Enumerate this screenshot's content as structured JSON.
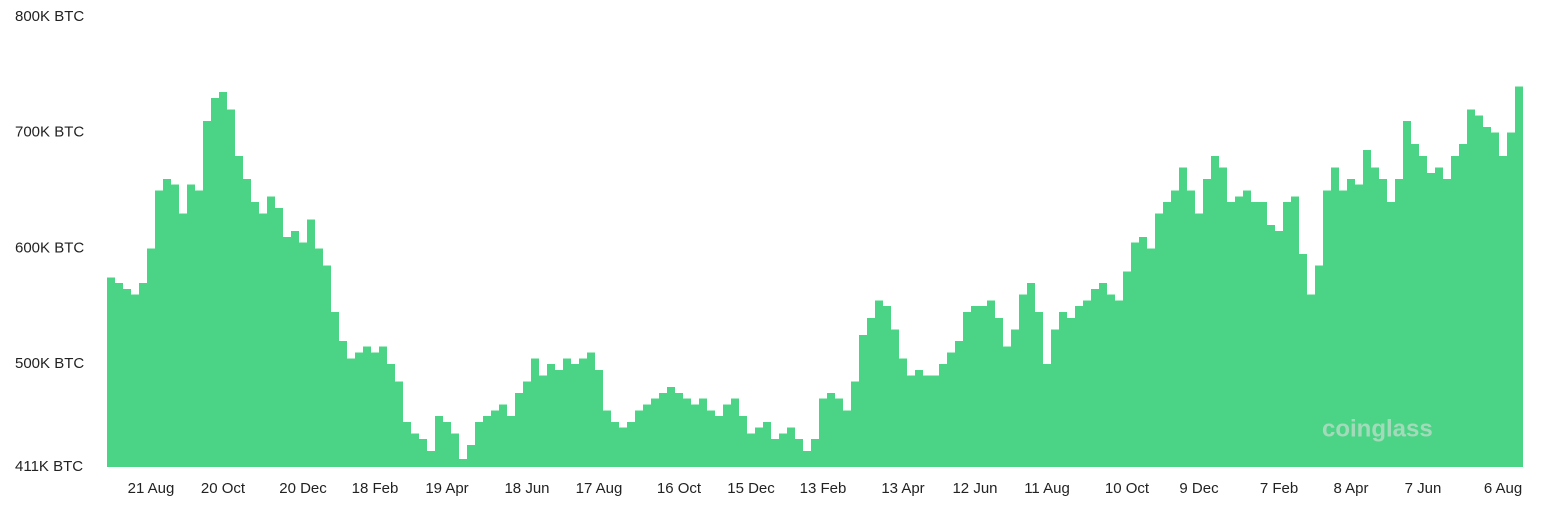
{
  "chart_data": {
    "type": "bar",
    "color": "#4cd486",
    "watermark": "coinglass",
    "ylim": [
      411000,
      800000
    ],
    "yticks": [
      {
        "value": 411000,
        "label": "411K BTC"
      },
      {
        "value": 500000,
        "label": "500K BTC"
      },
      {
        "value": 600000,
        "label": "600K BTC"
      },
      {
        "value": 700000,
        "label": "700K BTC"
      },
      {
        "value": 800000,
        "label": "800K BTC"
      }
    ],
    "categories": [
      null,
      null,
      null,
      null,
      null,
      "21 Aug",
      null,
      null,
      null,
      null,
      null,
      null,
      null,
      null,
      "20 Oct",
      null,
      null,
      null,
      null,
      null,
      null,
      null,
      null,
      null,
      "20 Dec",
      null,
      null,
      null,
      null,
      null,
      null,
      null,
      null,
      "18 Feb",
      null,
      null,
      null,
      null,
      null,
      null,
      null,
      null,
      "19 Apr",
      null,
      null,
      null,
      null,
      null,
      null,
      null,
      null,
      null,
      "18 Jun",
      null,
      null,
      null,
      null,
      null,
      null,
      null,
      null,
      "17 Aug",
      null,
      null,
      null,
      null,
      null,
      null,
      null,
      null,
      null,
      "16 Oct",
      null,
      null,
      null,
      null,
      null,
      null,
      null,
      null,
      "15 Dec",
      null,
      null,
      null,
      null,
      null,
      null,
      null,
      null,
      "13 Feb",
      null,
      null,
      null,
      null,
      null,
      null,
      null,
      null,
      null,
      "13 Apr",
      null,
      null,
      null,
      null,
      null,
      null,
      null,
      null,
      "12 Jun",
      null,
      null,
      null,
      null,
      null,
      null,
      null,
      null,
      "11 Aug",
      null,
      null,
      null,
      null,
      null,
      null,
      null,
      null,
      null,
      "10 Oct",
      null,
      null,
      null,
      null,
      null,
      null,
      null,
      null,
      "9 Dec",
      null,
      null,
      null,
      null,
      null,
      null,
      null,
      null,
      null,
      "7 Feb",
      null,
      null,
      null,
      null,
      null,
      null,
      null,
      null,
      "8 Apr",
      null,
      null,
      null,
      null,
      null,
      null,
      null,
      null,
      "7 Jun",
      null,
      null,
      null,
      null,
      null,
      null,
      null,
      null,
      null,
      "6 Aug",
      null,
      null
    ],
    "values": [
      575000,
      570000,
      565000,
      560000,
      570000,
      600000,
      650000,
      660000,
      655000,
      630000,
      655000,
      650000,
      710000,
      730000,
      735000,
      720000,
      680000,
      660000,
      640000,
      630000,
      645000,
      635000,
      610000,
      615000,
      605000,
      625000,
      600000,
      585000,
      545000,
      520000,
      505000,
      510000,
      515000,
      510000,
      515000,
      500000,
      485000,
      450000,
      440000,
      435000,
      425000,
      455000,
      450000,
      440000,
      418000,
      430000,
      450000,
      455000,
      460000,
      465000,
      455000,
      475000,
      485000,
      505000,
      490000,
      500000,
      495000,
      505000,
      500000,
      505000,
      510000,
      495000,
      460000,
      450000,
      445000,
      450000,
      460000,
      465000,
      470000,
      475000,
      480000,
      475000,
      470000,
      465000,
      470000,
      460000,
      455000,
      465000,
      470000,
      455000,
      440000,
      445000,
      450000,
      435000,
      440000,
      445000,
      435000,
      425000,
      435000,
      470000,
      475000,
      470000,
      460000,
      485000,
      525000,
      540000,
      555000,
      550000,
      530000,
      505000,
      490000,
      495000,
      490000,
      490000,
      500000,
      510000,
      520000,
      545000,
      550000,
      550000,
      555000,
      540000,
      515000,
      530000,
      560000,
      570000,
      545000,
      500000,
      530000,
      545000,
      540000,
      550000,
      555000,
      565000,
      570000,
      560000,
      555000,
      580000,
      605000,
      610000,
      600000,
      630000,
      640000,
      650000,
      670000,
      650000,
      630000,
      660000,
      680000,
      670000,
      640000,
      645000,
      650000,
      640000,
      640000,
      620000,
      615000,
      640000,
      645000,
      595000,
      560000,
      585000,
      650000,
      670000,
      650000,
      660000,
      655000,
      685000,
      670000,
      660000,
      640000,
      660000,
      710000,
      690000,
      680000,
      665000,
      670000,
      660000,
      680000,
      690000,
      720000,
      715000,
      705000,
      700000,
      680000,
      700000,
      740000
    ]
  }
}
